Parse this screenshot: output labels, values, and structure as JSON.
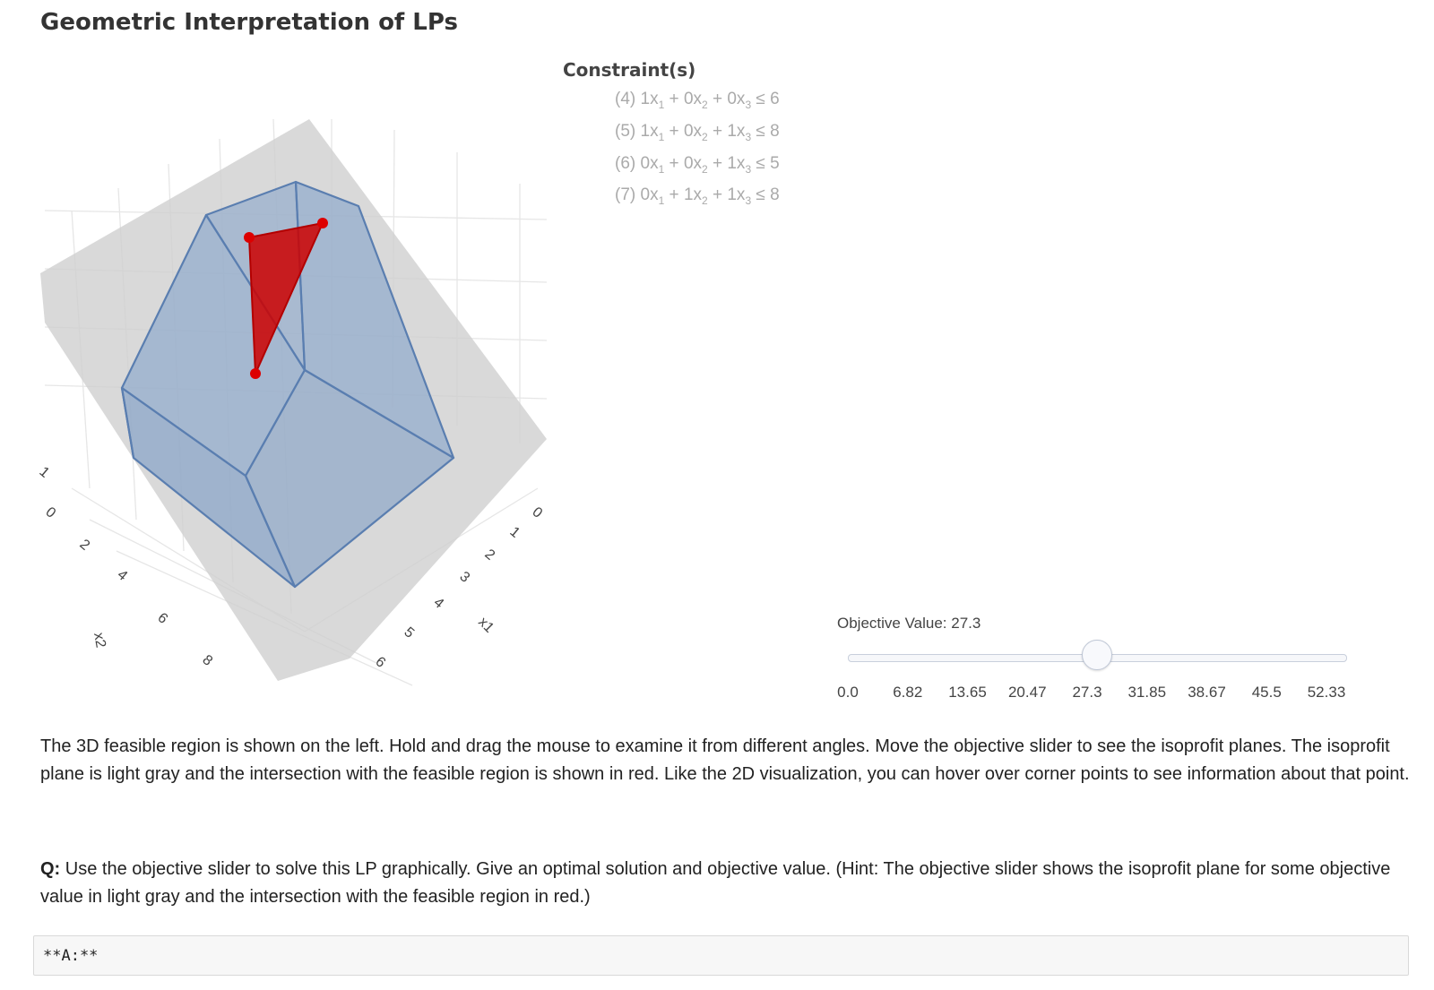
{
  "page_title": "Geometric Interpretation of LPs",
  "constraints": {
    "heading": "Constraint(s)",
    "items": [
      {
        "id": "(4)",
        "terms": [
          [
            "1x",
            "1"
          ],
          [
            "0x",
            "2"
          ],
          [
            "0x",
            "3"
          ]
        ],
        "rhs": "6"
      },
      {
        "id": "(5)",
        "terms": [
          [
            "1x",
            "1"
          ],
          [
            "0x",
            "2"
          ],
          [
            "1x",
            "3"
          ]
        ],
        "rhs": "8"
      },
      {
        "id": "(6)",
        "terms": [
          [
            "0x",
            "1"
          ],
          [
            "0x",
            "2"
          ],
          [
            "1x",
            "3"
          ]
        ],
        "rhs": "5"
      },
      {
        "id": "(7)",
        "terms": [
          [
            "0x",
            "1"
          ],
          [
            "1x",
            "2"
          ],
          [
            "1x",
            "3"
          ]
        ],
        "rhs": "8"
      }
    ]
  },
  "plot": {
    "x2_axis": {
      "label": "x2",
      "ticks": [
        "0",
        "2",
        "4",
        "6",
        "8"
      ]
    },
    "x1_axis": {
      "label": "x1",
      "ticks": [
        "0",
        "1",
        "2",
        "3",
        "4",
        "5",
        "6"
      ]
    },
    "x3_axis": {
      "ticks": [
        "1"
      ]
    },
    "colors": {
      "feasible_region": "#6f93c2",
      "feasible_edges": "#5a7eb0",
      "isoprofit_plane": "#cfcfcf",
      "intersection": "#cc0000",
      "grid": "#e6e6e6"
    }
  },
  "slider": {
    "label": "Objective Value: 27.3",
    "value": 27.3,
    "min": 0,
    "max": 54.6,
    "tick_labels": [
      "0.0",
      "6.82",
      "13.65",
      "20.47",
      "27.3",
      "31.85",
      "38.67",
      "45.5",
      "52.33"
    ]
  },
  "description": "The 3D feasible region is shown on the left. Hold and drag the mouse to examine it from different angles. Move the objective slider to see the isoprofit planes. The isoprofit plane is light gray and the intersection with the feasible region is shown in red. Like the 2D visualization, you can hover over corner points to see information about that point.",
  "question": {
    "prefix": "Q:",
    "text": "Use the objective slider to solve this LP graphically. Give an optimal solution and objective value. (Hint: The objective slider shows the isoprofit plane for some objective value in light gray and the intersection with the feasible region in red.)"
  },
  "answer": {
    "text": "**A:**"
  }
}
